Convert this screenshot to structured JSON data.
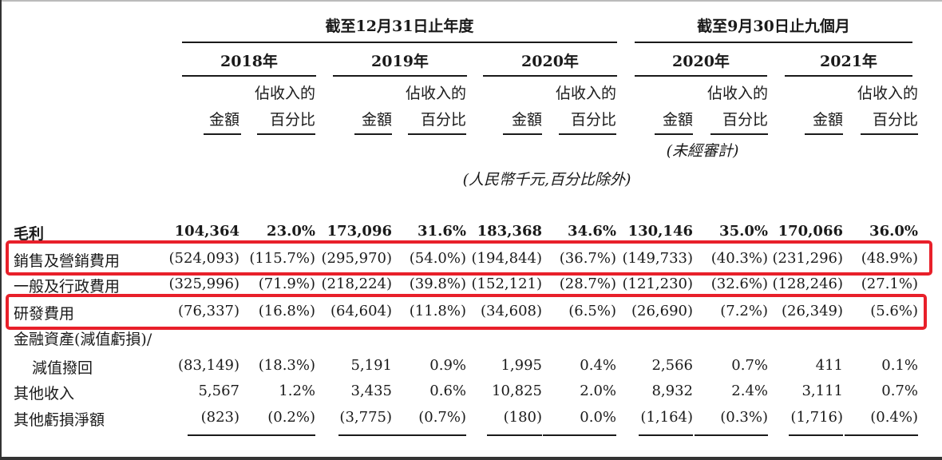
{
  "header": {
    "group1": "截至12月31日止年度",
    "group2": "截至9月30日止九個月",
    "years": [
      "2018年",
      "2019年",
      "2020年",
      "2020年",
      "2021年"
    ],
    "amount_label": "金額",
    "pct_label_line1": "佔收入的",
    "pct_label_line2": "百分比",
    "unaudited": "(未經審計)",
    "unit_note": "(人民幣千元,百分比除外)"
  },
  "rows": [
    {
      "label": "毛利",
      "values": [
        "104,364",
        "23.0%",
        "173,096",
        "31.6%",
        "183,368",
        "34.6%",
        "130,146",
        "35.0%",
        "170,066",
        "36.0%"
      ]
    },
    {
      "label": "銷售及營銷費用",
      "values": [
        "(524,093)",
        "(115.7%)",
        "(295,970)",
        "(54.0%)",
        "(194,844)",
        "(36.7%)",
        "(149,733)",
        "(40.3%)",
        "(231,296)",
        "(48.9%)"
      ]
    },
    {
      "label": "一般及行政費用",
      "values": [
        "(325,996)",
        "(71.9%)",
        "(218,224)",
        "(39.8%)",
        "(152,121)",
        "(28.7%)",
        "(121,230)",
        "(32.6%)",
        "(128,246)",
        "(27.1%)"
      ]
    },
    {
      "label": "研發費用",
      "values": [
        "(76,337)",
        "(16.8%)",
        "(64,604)",
        "(11.8%)",
        "(34,608)",
        "(6.5%)",
        "(26,690)",
        "(7.2%)",
        "(26,349)",
        "(5.6%)"
      ]
    },
    {
      "label": "金融資產(減值虧損)/",
      "values": [
        "",
        "",
        "",
        "",
        "",
        "",
        "",
        "",
        "",
        ""
      ]
    },
    {
      "label": "減值撥回",
      "values": [
        "(83,149)",
        "(18.3%)",
        "5,191",
        "0.9%",
        "1,995",
        "0.4%",
        "2,566",
        "0.7%",
        "411",
        "0.1%"
      ]
    },
    {
      "label": "其他收入",
      "values": [
        "5,567",
        "1.2%",
        "3,435",
        "0.6%",
        "10,825",
        "2.0%",
        "8,932",
        "2.4%",
        "3,111",
        "0.7%"
      ]
    },
    {
      "label": "其他虧損淨額",
      "values": [
        "(823)",
        "(0.2%)",
        "(3,775)",
        "(0.7%)",
        "(180)",
        "0.0%",
        "(1,164)",
        "(0.3%)",
        "(1,716)",
        "(0.4%)"
      ]
    }
  ]
}
